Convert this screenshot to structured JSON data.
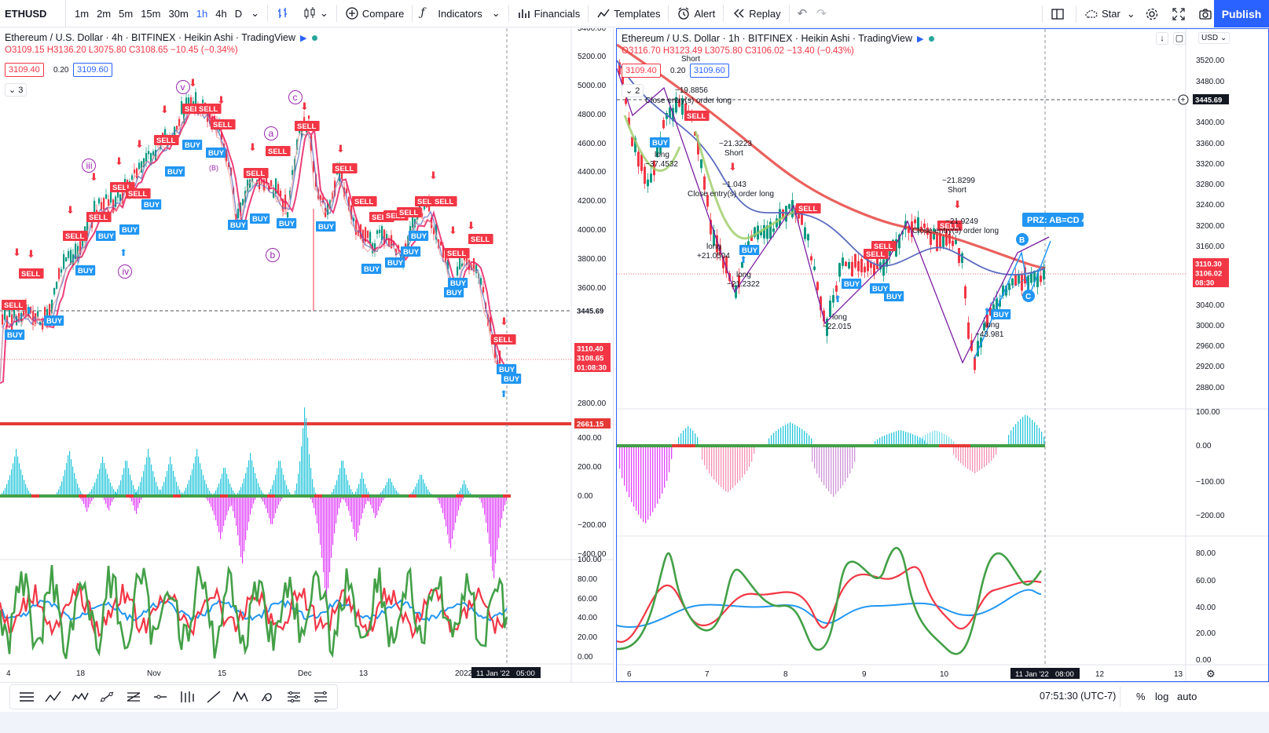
{
  "toolbar": {
    "symbol": "ETHUSD",
    "intervals": [
      "1m",
      "2m",
      "5m",
      "15m",
      "30m",
      "1h",
      "4h",
      "D"
    ],
    "active_interval": "1h",
    "compare_label": "Compare",
    "indicators_label": "Indicators",
    "financials_label": "Financials",
    "templates_label": "Templates",
    "alert_label": "Alert",
    "replay_label": "Replay",
    "star_label": "Star",
    "publish_label": "Publish"
  },
  "colors": {
    "accent": "#2962ff",
    "bull": "#089981",
    "bear": "#f23645",
    "sell_tag": "#f23645",
    "buy_tag": "#2196f3",
    "wave_purple": "#9c27b0",
    "hist_cyan": "#26c6da",
    "hist_magenta": "#e040fb",
    "osc_green": "#43a047",
    "osc_red": "#f23645",
    "osc_blue": "#2196f3"
  },
  "left_chart": {
    "title": "Ethereum / U.S. Dollar · 4h · BITFINEX · Heikin Ashi · TradingView",
    "ohlc_o": "O3109.15",
    "ohlc_h": "H3136.20",
    "ohlc_l": "L3075.80",
    "ohlc_c": "C3108.65",
    "ohlc_chg": "−10.45 (−0.34%)",
    "bid": "3109.40",
    "spread": "0.20",
    "ask": "3109.60",
    "indicator_count": "3",
    "price_axis": [
      "5400.00",
      "5200.00",
      "5000.00",
      "4800.00",
      "4600.00",
      "4400.00",
      "4200.00",
      "4000.00",
      "3800.00",
      "3600.00",
      "3445.69",
      "3110.40",
      "3108.65",
      "01:08:30",
      "2800.00",
      "2661.15"
    ],
    "hist_axis": [
      "400.00",
      "200.00",
      "0.00",
      "−200.00",
      "−400.00"
    ],
    "osc_axis": [
      "100.00",
      "80.00",
      "60.00",
      "40.00",
      "20.00",
      "0.00"
    ],
    "time_axis": [
      "4",
      "18",
      "Nov",
      "15",
      "Dec",
      "13",
      "2022"
    ],
    "crosshair_time": "11 Jan '22",
    "crosshair_time2": "05:00",
    "wave_labels": [
      "v",
      "iii",
      "iv",
      "a",
      "b",
      "c",
      "(B)"
    ],
    "sell_label": "SELL",
    "buy_label": "BUY"
  },
  "right_chart": {
    "title": "Ethereum / U.S. Dollar · 1h · BITFINEX · Heikin Ashi · TradingView",
    "ohlc_o": "O3116.70",
    "ohlc_h": "H3123.49",
    "ohlc_l": "L3075.80",
    "ohlc_c": "C3106.02",
    "ohlc_chg": "−13.40 (−0.43%)",
    "bid": "3109.40",
    "spread": "0.20",
    "ask": "3109.60",
    "indicator_count": "2",
    "currency": "USD",
    "price_axis": [
      "3520.00",
      "3480.00",
      "3445.69",
      "3400.00",
      "3360.00",
      "3320.00",
      "3280.00",
      "3240.00",
      "3200.00",
      "3160.00",
      "3110.30",
      "3106.02",
      "08:30",
      "3040.00",
      "3000.00",
      "2960.00",
      "2920.00",
      "2880.00"
    ],
    "hist_axis": [
      "100.00",
      "0.00",
      "−100.00",
      "−200.00"
    ],
    "osc_axis": [
      "80.00",
      "60.00",
      "40.00",
      "20.00",
      "0.00"
    ],
    "time_axis": [
      "6",
      "7",
      "8",
      "9",
      "10",
      "12",
      "13"
    ],
    "crosshair_time": "11 Jan '22",
    "crosshair_time2": "08:00",
    "annotations": {
      "a1": "−19.8856",
      "a2": "Close entry(s) order long",
      "a3": "long",
      "a4": "−37.4532",
      "a5": "−21.3223",
      "a6": "Short",
      "a7": "−1.043",
      "a8": "Close entry(s) order long",
      "a9": "long",
      "a10": "+21.0504",
      "a11": "long",
      "a12": "−21.2322",
      "a13": "long",
      "a14": "−22.015",
      "a15": "−21.8299",
      "a16": "Short",
      "a17": "−21.9249",
      "a18": "Close entry(s) order long",
      "a19": "long",
      "a20": "−43.981",
      "a21": "Short"
    },
    "prz_label": "PRZ: AB=CD 4",
    "pattern_b": "B",
    "pattern_c": "C",
    "sell_label": "SELL",
    "buy_label": "BUY"
  },
  "bottombar": {
    "clock": "07:51:30 (UTC-7)",
    "percent": "%",
    "log": "log",
    "auto": "auto"
  },
  "icons": [
    "chart-type-bars-icon",
    "chart-type-candles-icon",
    "compare-plus-icon",
    "indicators-fx-icon",
    "financials-icon",
    "templates-icon",
    "alert-clock-icon",
    "replay-icon",
    "undo-icon",
    "redo-icon",
    "layout-icon",
    "star-cloud-icon",
    "settings-gear-icon",
    "fullscreen-icon",
    "camera-icon"
  ]
}
